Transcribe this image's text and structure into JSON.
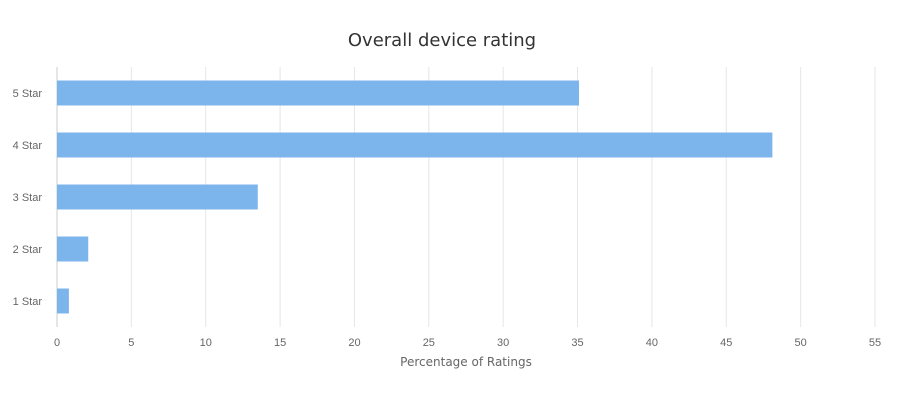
{
  "chart_data": {
    "type": "bar",
    "orientation": "horizontal",
    "title": "Overall device rating",
    "xlabel": "Percentage of Ratings",
    "ylabel": "",
    "categories": [
      "5 Star",
      "4 Star",
      "3 Star",
      "2 Star",
      "1 Star"
    ],
    "values": [
      35.1,
      48.1,
      13.5,
      2.1,
      0.8
    ],
    "xlim": [
      0,
      55
    ],
    "xticks": [
      0,
      5,
      10,
      15,
      20,
      25,
      30,
      35,
      40,
      45,
      50,
      55
    ],
    "grid": true,
    "legend": "none",
    "bar_color": "#7cb5ec"
  }
}
